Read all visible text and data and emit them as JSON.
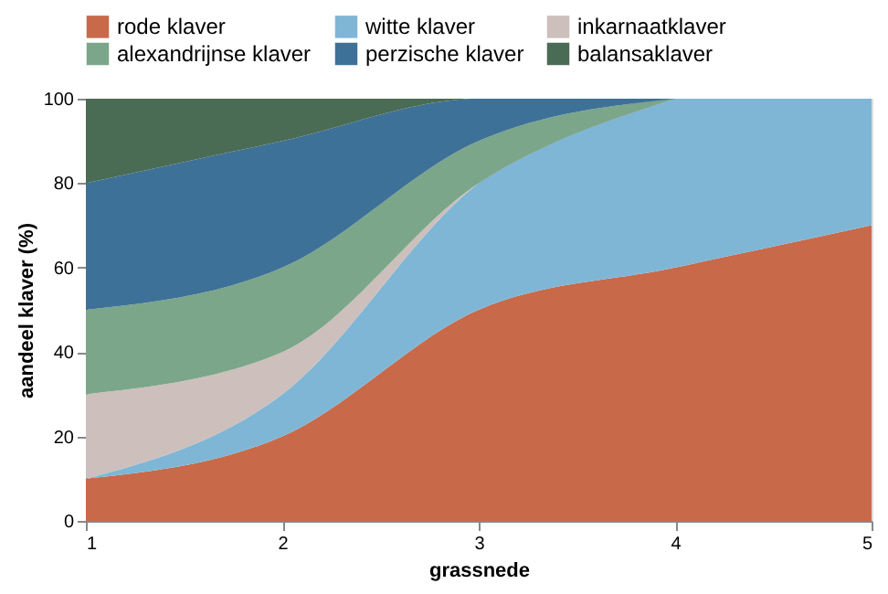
{
  "chart_data": {
    "type": "area",
    "stacked": true,
    "xlabel": "grassnede",
    "ylabel": "aandeel klaver (%)",
    "x": [
      1,
      2,
      3,
      4,
      5
    ],
    "xlim": [
      1,
      5
    ],
    "xticks": [
      1,
      2,
      3,
      4,
      5
    ],
    "ylim": [
      0,
      100
    ],
    "yticks": [
      0,
      20,
      40,
      60,
      80,
      100
    ],
    "grid": false,
    "legend": "top",
    "series": [
      {
        "name": "rode klaver",
        "color": "#c8694a",
        "values": [
          10,
          20,
          50,
          60,
          70
        ]
      },
      {
        "name": "witte klaver",
        "color": "#7fb6d5",
        "values": [
          0,
          10,
          30,
          40,
          30
        ]
      },
      {
        "name": "inkarnaatklaver",
        "color": "#cdbfbb",
        "x": [
          1,
          2,
          3,
          4
        ],
        "values": [
          20,
          10,
          0,
          0
        ]
      },
      {
        "name": "alexandrijnse klaver",
        "color": "#7ba68a",
        "x": [
          1,
          2,
          3,
          4
        ],
        "values": [
          20,
          20,
          10,
          0
        ]
      },
      {
        "name": "perzische klaver",
        "color": "#3e7197",
        "x": [
          1,
          2,
          3,
          4
        ],
        "values": [
          30,
          30,
          10,
          0
        ]
      },
      {
        "name": "balansaklaver",
        "color": "#4a6b54",
        "x": [
          1,
          2,
          3,
          4
        ],
        "values": [
          20,
          10,
          0,
          0
        ]
      }
    ]
  }
}
